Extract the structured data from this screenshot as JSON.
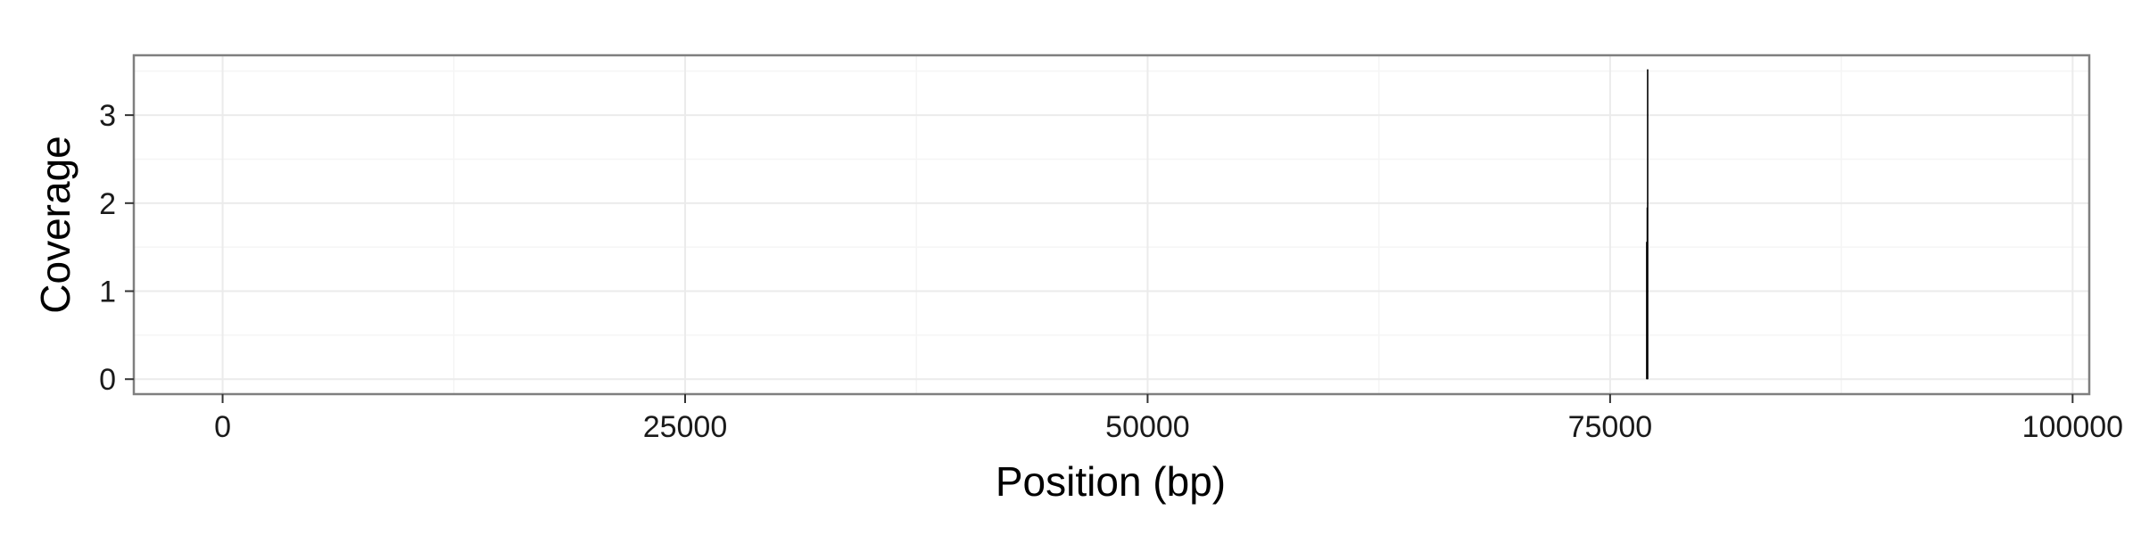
{
  "chart_data": {
    "type": "line",
    "title": "",
    "xlabel": "Position (bp)",
    "ylabel": "Coverage",
    "xlim": [
      -4800,
      100900
    ],
    "ylim": [
      -0.17,
      3.68
    ],
    "x_ticks": [
      0,
      25000,
      50000,
      75000,
      100000
    ],
    "x_tick_labels": [
      "0",
      "25000",
      "50000",
      "75000",
      "100000"
    ],
    "y_ticks": [
      0,
      1,
      2,
      3
    ],
    "y_tick_labels": [
      "0",
      "1",
      "2",
      "3"
    ],
    "grid": true,
    "legend": "none",
    "series": [
      {
        "color": "#000000",
        "segments": [
          {
            "x": 76980,
            "y_min": 0,
            "y_max": 1.56
          },
          {
            "x": 77010,
            "y_min": 0,
            "y_max": 1.95
          },
          {
            "x": 77030,
            "y_min": 0,
            "y_max": 3.52
          }
        ]
      }
    ]
  },
  "colors": {
    "panel_border": "#7f7f7f",
    "grid_major": "#ebebeb",
    "grid_minor": "#f5f5f5",
    "tick_line": "#333333",
    "data": "#000000"
  }
}
